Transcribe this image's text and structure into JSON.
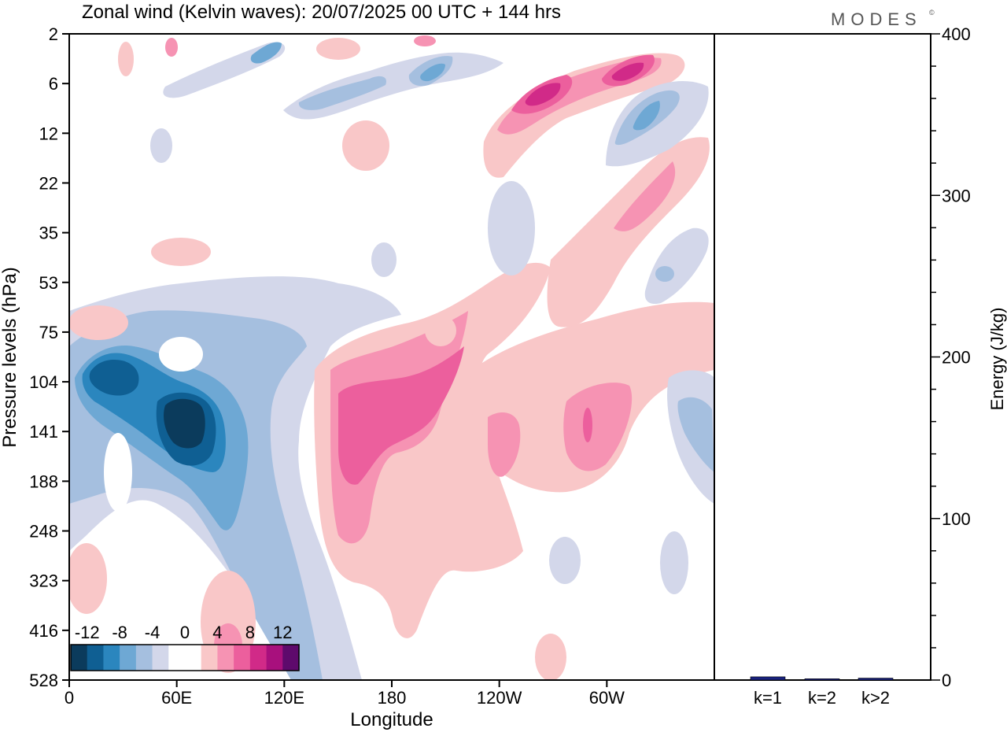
{
  "title": "Zonal wind (Kelvin waves):  20/07/2025  00 UTC  + 144 hrs",
  "logo": "MODES",
  "logo_mark": "©",
  "chart_data": [
    {
      "type": "heatmap",
      "xlabel": "Longitude",
      "ylabel": "Pressure levels (hPa)",
      "x_ticks": [
        "0",
        "60E",
        "120E",
        "180",
        "120W",
        "60W"
      ],
      "y_ticks": [
        "2",
        "6",
        "12",
        "22",
        "35",
        "53",
        "75",
        "104",
        "141",
        "188",
        "248",
        "323",
        "416",
        "528"
      ],
      "colorbar": {
        "labels": [
          "-12",
          "-8",
          "-4",
          "0",
          "4",
          "8",
          "12"
        ],
        "colors": [
          "#0b3b5c",
          "#0f5f93",
          "#2b86be",
          "#6ea8d4",
          "#a5bfdf",
          "#d3d7ea",
          "#ffffff",
          "#ffffff",
          "#f9c7c8",
          "#f693b3",
          "#ec5f9d",
          "#d12a88",
          "#a8107d",
          "#5e0a6c"
        ]
      },
      "features": [
        {
          "sign": "negative",
          "lon": 55,
          "level": 141,
          "value": -13
        },
        {
          "sign": "negative",
          "lon": 25,
          "level": 104,
          "value": -11
        },
        {
          "sign": "negative",
          "lon": 100,
          "level": 188,
          "value": -5
        },
        {
          "sign": "positive",
          "lon": 170,
          "level": 141,
          "value": 8
        },
        {
          "sign": "positive",
          "lon": 250,
          "level": 141,
          "value": 5
        },
        {
          "sign": "positive",
          "lon": 268,
          "level": 6,
          "value": 10
        },
        {
          "sign": "positive",
          "lon": 318,
          "level": 6,
          "value": 9
        },
        {
          "sign": "negative",
          "lon": 320,
          "level": 12,
          "value": -7
        },
        {
          "sign": "negative",
          "lon": 195,
          "level": 6,
          "value": -6
        }
      ]
    },
    {
      "type": "bar",
      "categories": [
        "k=1",
        "k=2",
        "k>2"
      ],
      "values": [
        2,
        0.8,
        1.2
      ],
      "ylabel": "Energy (J/kg)",
      "ylim": [
        0,
        400
      ],
      "y_ticks": [
        "0",
        "100",
        "200",
        "300",
        "400"
      ],
      "bar_color": "#1a237e"
    }
  ]
}
